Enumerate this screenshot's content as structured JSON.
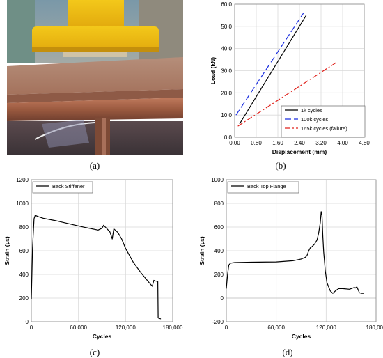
{
  "captions": {
    "a": "(a)",
    "b": "(b)",
    "c": "(c)",
    "d": "(d)"
  },
  "chart_data": [
    {
      "type": "line",
      "panel": "b",
      "xlabel": "Displacement (mm)",
      "ylabel": "Load (kN)",
      "xlim": [
        0,
        4.8
      ],
      "ylim": [
        0,
        60
      ],
      "xticks": [
        "0.00",
        "0.80",
        "1.60",
        "2.40",
        "3.20",
        "4.00",
        "4.80"
      ],
      "yticks": [
        "0.0",
        "10.0",
        "20.0",
        "30.0",
        "40.0",
        "50.0",
        "60.0"
      ],
      "legend_position": "bottom-right",
      "series": [
        {
          "name": "1k cycles",
          "color": "#000000",
          "dash": "solid",
          "x": [
            0.18,
            2.65
          ],
          "y": [
            6,
            55
          ]
        },
        {
          "name": "100k cycles",
          "color": "#1a2ee0",
          "dash": "long-dash",
          "x": [
            0.05,
            2.55
          ],
          "y": [
            10,
            56
          ]
        },
        {
          "name": "165k cycles (failure)",
          "color": "#e0201a",
          "dash": "dash-dot",
          "x": [
            0.12,
            3.8
          ],
          "y": [
            5,
            34
          ]
        }
      ]
    },
    {
      "type": "line",
      "panel": "c",
      "xlabel": "Cycles",
      "ylabel": "Strain (με)",
      "xlim": [
        0,
        180000
      ],
      "ylim": [
        0,
        1200
      ],
      "xticks": [
        "0",
        "60,000",
        "120,000",
        "180,000"
      ],
      "yticks": [
        "0",
        "200",
        "400",
        "600",
        "800",
        "1000",
        "1200"
      ],
      "legend_position": "top-left",
      "series": [
        {
          "name": "Back Stiffener",
          "color": "#000000",
          "x": [
            0,
            1500,
            3500,
            5000,
            8000,
            15000,
            30000,
            50000,
            70000,
            85000,
            90000,
            92000,
            95000,
            100000,
            103000,
            105000,
            110000,
            115000,
            120000,
            130000,
            140000,
            150000,
            154000,
            156000,
            158000,
            161000,
            161500,
            162000,
            163000,
            164500,
            165000
          ],
          "y": [
            190,
            620,
            870,
            900,
            890,
            875,
            855,
            825,
            795,
            775,
            790,
            815,
            795,
            760,
            700,
            785,
            755,
            700,
            620,
            500,
            410,
            330,
            300,
            350,
            345,
            340,
            35,
            30,
            28,
            25,
            25
          ]
        }
      ]
    },
    {
      "type": "line",
      "panel": "d",
      "xlabel": "Cycles",
      "ylabel": "Strain (με)",
      "xlim": [
        0,
        180000
      ],
      "ylim": [
        -200,
        1000
      ],
      "xticks": [
        "0",
        "60,000",
        "120,000",
        "180,000"
      ],
      "yticks": [
        "-200",
        "0",
        "200",
        "400",
        "600",
        "800",
        "1000"
      ],
      "legend_position": "top-left",
      "series": [
        {
          "name": "Back Top Flange",
          "color": "#000000",
          "x": [
            0,
            1500,
            3000,
            5000,
            10000,
            30000,
            60000,
            80000,
            90000,
            95000,
            97000,
            99000,
            101000,
            103000,
            106000,
            109000,
            111000,
            113000,
            114000,
            115000,
            116000,
            117000,
            119000,
            121000,
            125000,
            128000,
            131000,
            135000,
            140000,
            148000,
            152000,
            154000,
            155000,
            157000,
            160000,
            163000,
            165000
          ],
          "y": [
            80,
            200,
            280,
            295,
            300,
            303,
            305,
            315,
            330,
            345,
            360,
            400,
            425,
            435,
            455,
            490,
            550,
            640,
            730,
            700,
            520,
            390,
            230,
            130,
            60,
            40,
            60,
            80,
            80,
            75,
            85,
            90,
            85,
            95,
            45,
            40,
            40
          ]
        }
      ]
    }
  ]
}
